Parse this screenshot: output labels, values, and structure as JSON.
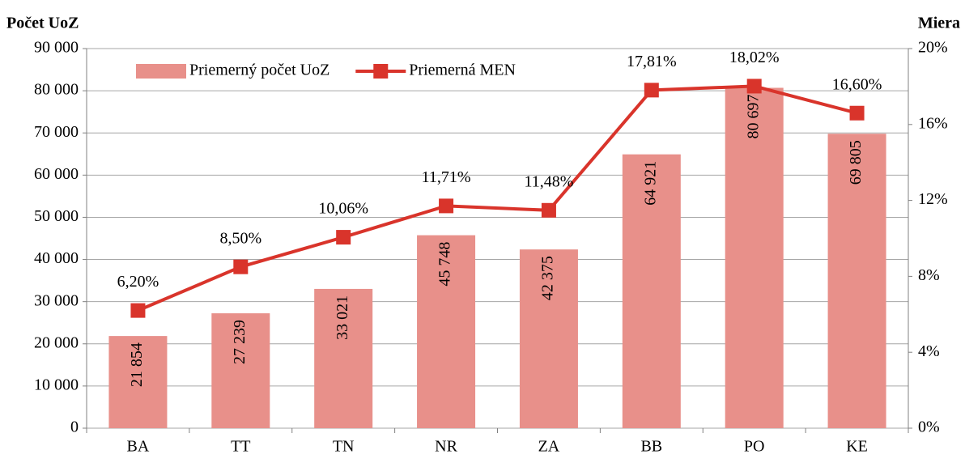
{
  "chart_data": {
    "type": "bar_line",
    "y_label": "Počet UoZ",
    "y2_label": "Miera",
    "categories": [
      "BA",
      "TT",
      "TN",
      "NR",
      "ZA",
      "BB",
      "PO",
      "KE"
    ],
    "series": [
      {
        "name": "Priemerný počet UoZ",
        "type": "bar",
        "axis": "y",
        "color": "#e8908a",
        "values": [
          21854,
          27239,
          33021,
          45748,
          42375,
          64921,
          80697,
          69805
        ],
        "value_labels": [
          "21 854",
          "27 239",
          "33 021",
          "45 748",
          "42 375",
          "64 921",
          "80 697",
          "69 805"
        ]
      },
      {
        "name": "Priemerná MEN",
        "type": "line",
        "axis": "y2",
        "color": "#d9342b",
        "values": [
          6.2,
          8.5,
          10.06,
          11.71,
          11.48,
          17.81,
          18.02,
          16.6
        ],
        "value_labels": [
          "6,20%",
          "8,50%",
          "10,06%",
          "11,71%",
          "11,48%",
          "17,81%",
          "18,02%",
          "16,60%"
        ]
      }
    ],
    "ylim": [
      0,
      90000
    ],
    "yticks": [
      0,
      {
        "value": 10000,
        "label": "10 000"
      },
      {
        "value": 20000,
        "label": "20 000"
      },
      {
        "value": 30000,
        "label": "30 000"
      },
      {
        "value": 40000,
        "label": "40 000"
      },
      {
        "value": 50000,
        "label": "50 000"
      },
      {
        "value": 60000,
        "label": "60 000"
      },
      {
        "value": 70000,
        "label": "70 000"
      },
      {
        "value": 80000,
        "label": "80 000"
      },
      {
        "value": 90000,
        "label": "90 000"
      }
    ],
    "y2lim": [
      0,
      20
    ],
    "y2ticks": [
      {
        "value": 0,
        "label": "0%"
      },
      {
        "value": 4,
        "label": "4%"
      },
      {
        "value": 8,
        "label": "8%"
      },
      {
        "value": 12,
        "label": "12%"
      },
      {
        "value": 16,
        "label": "16%"
      },
      {
        "value": 20,
        "label": "20%"
      }
    ],
    "grid": true,
    "legend": "top-left"
  }
}
